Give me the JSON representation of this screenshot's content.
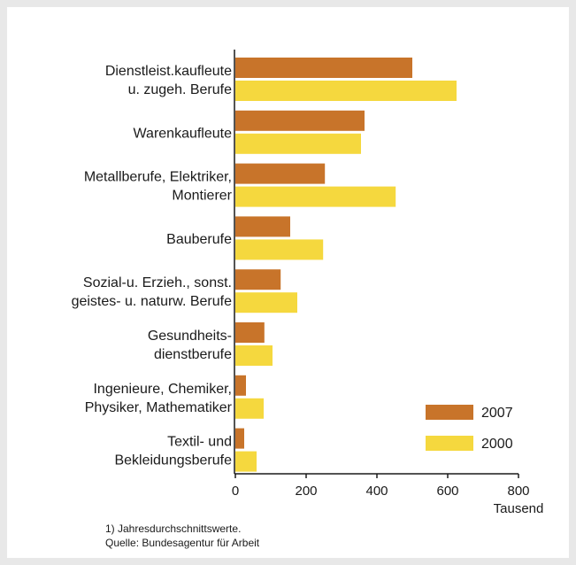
{
  "chart_data": {
    "type": "bar",
    "orientation": "horizontal",
    "categories": [
      [
        "Dienstleist.kaufleute",
        "u. zugeh. Berufe"
      ],
      [
        "Warenkaufleute"
      ],
      [
        "Metallberufe, Elektriker,",
        "Montierer"
      ],
      [
        "Bauberufe"
      ],
      [
        "Sozial-u. Erzieh., sonst.",
        "geistes- u. naturw. Berufe"
      ],
      [
        "Gesundheits-",
        "dienstberufe"
      ],
      [
        "Ingenieure, Chemiker,",
        "Physiker, Mathematiker"
      ],
      [
        "Textil- und",
        "Bekleidungsberufe"
      ]
    ],
    "series": [
      {
        "name": "2007",
        "color": "#c8742a",
        "values": [
          500,
          365,
          253,
          155,
          128,
          82,
          30,
          25
        ]
      },
      {
        "name": "2000",
        "color": "#f5d83e",
        "values": [
          625,
          355,
          453,
          248,
          175,
          105,
          80,
          60
        ]
      }
    ],
    "xlim": [
      0,
      800
    ],
    "xticks": [
      "0",
      "200",
      "400",
      "600",
      "800"
    ],
    "xlabel": "Tausend",
    "legend_position": "bottom-right",
    "grid": false
  },
  "footnotes": {
    "note": "1) Jahresdurchschnittswerte.",
    "source": "Quelle: Bundesagentur für Arbeit"
  }
}
